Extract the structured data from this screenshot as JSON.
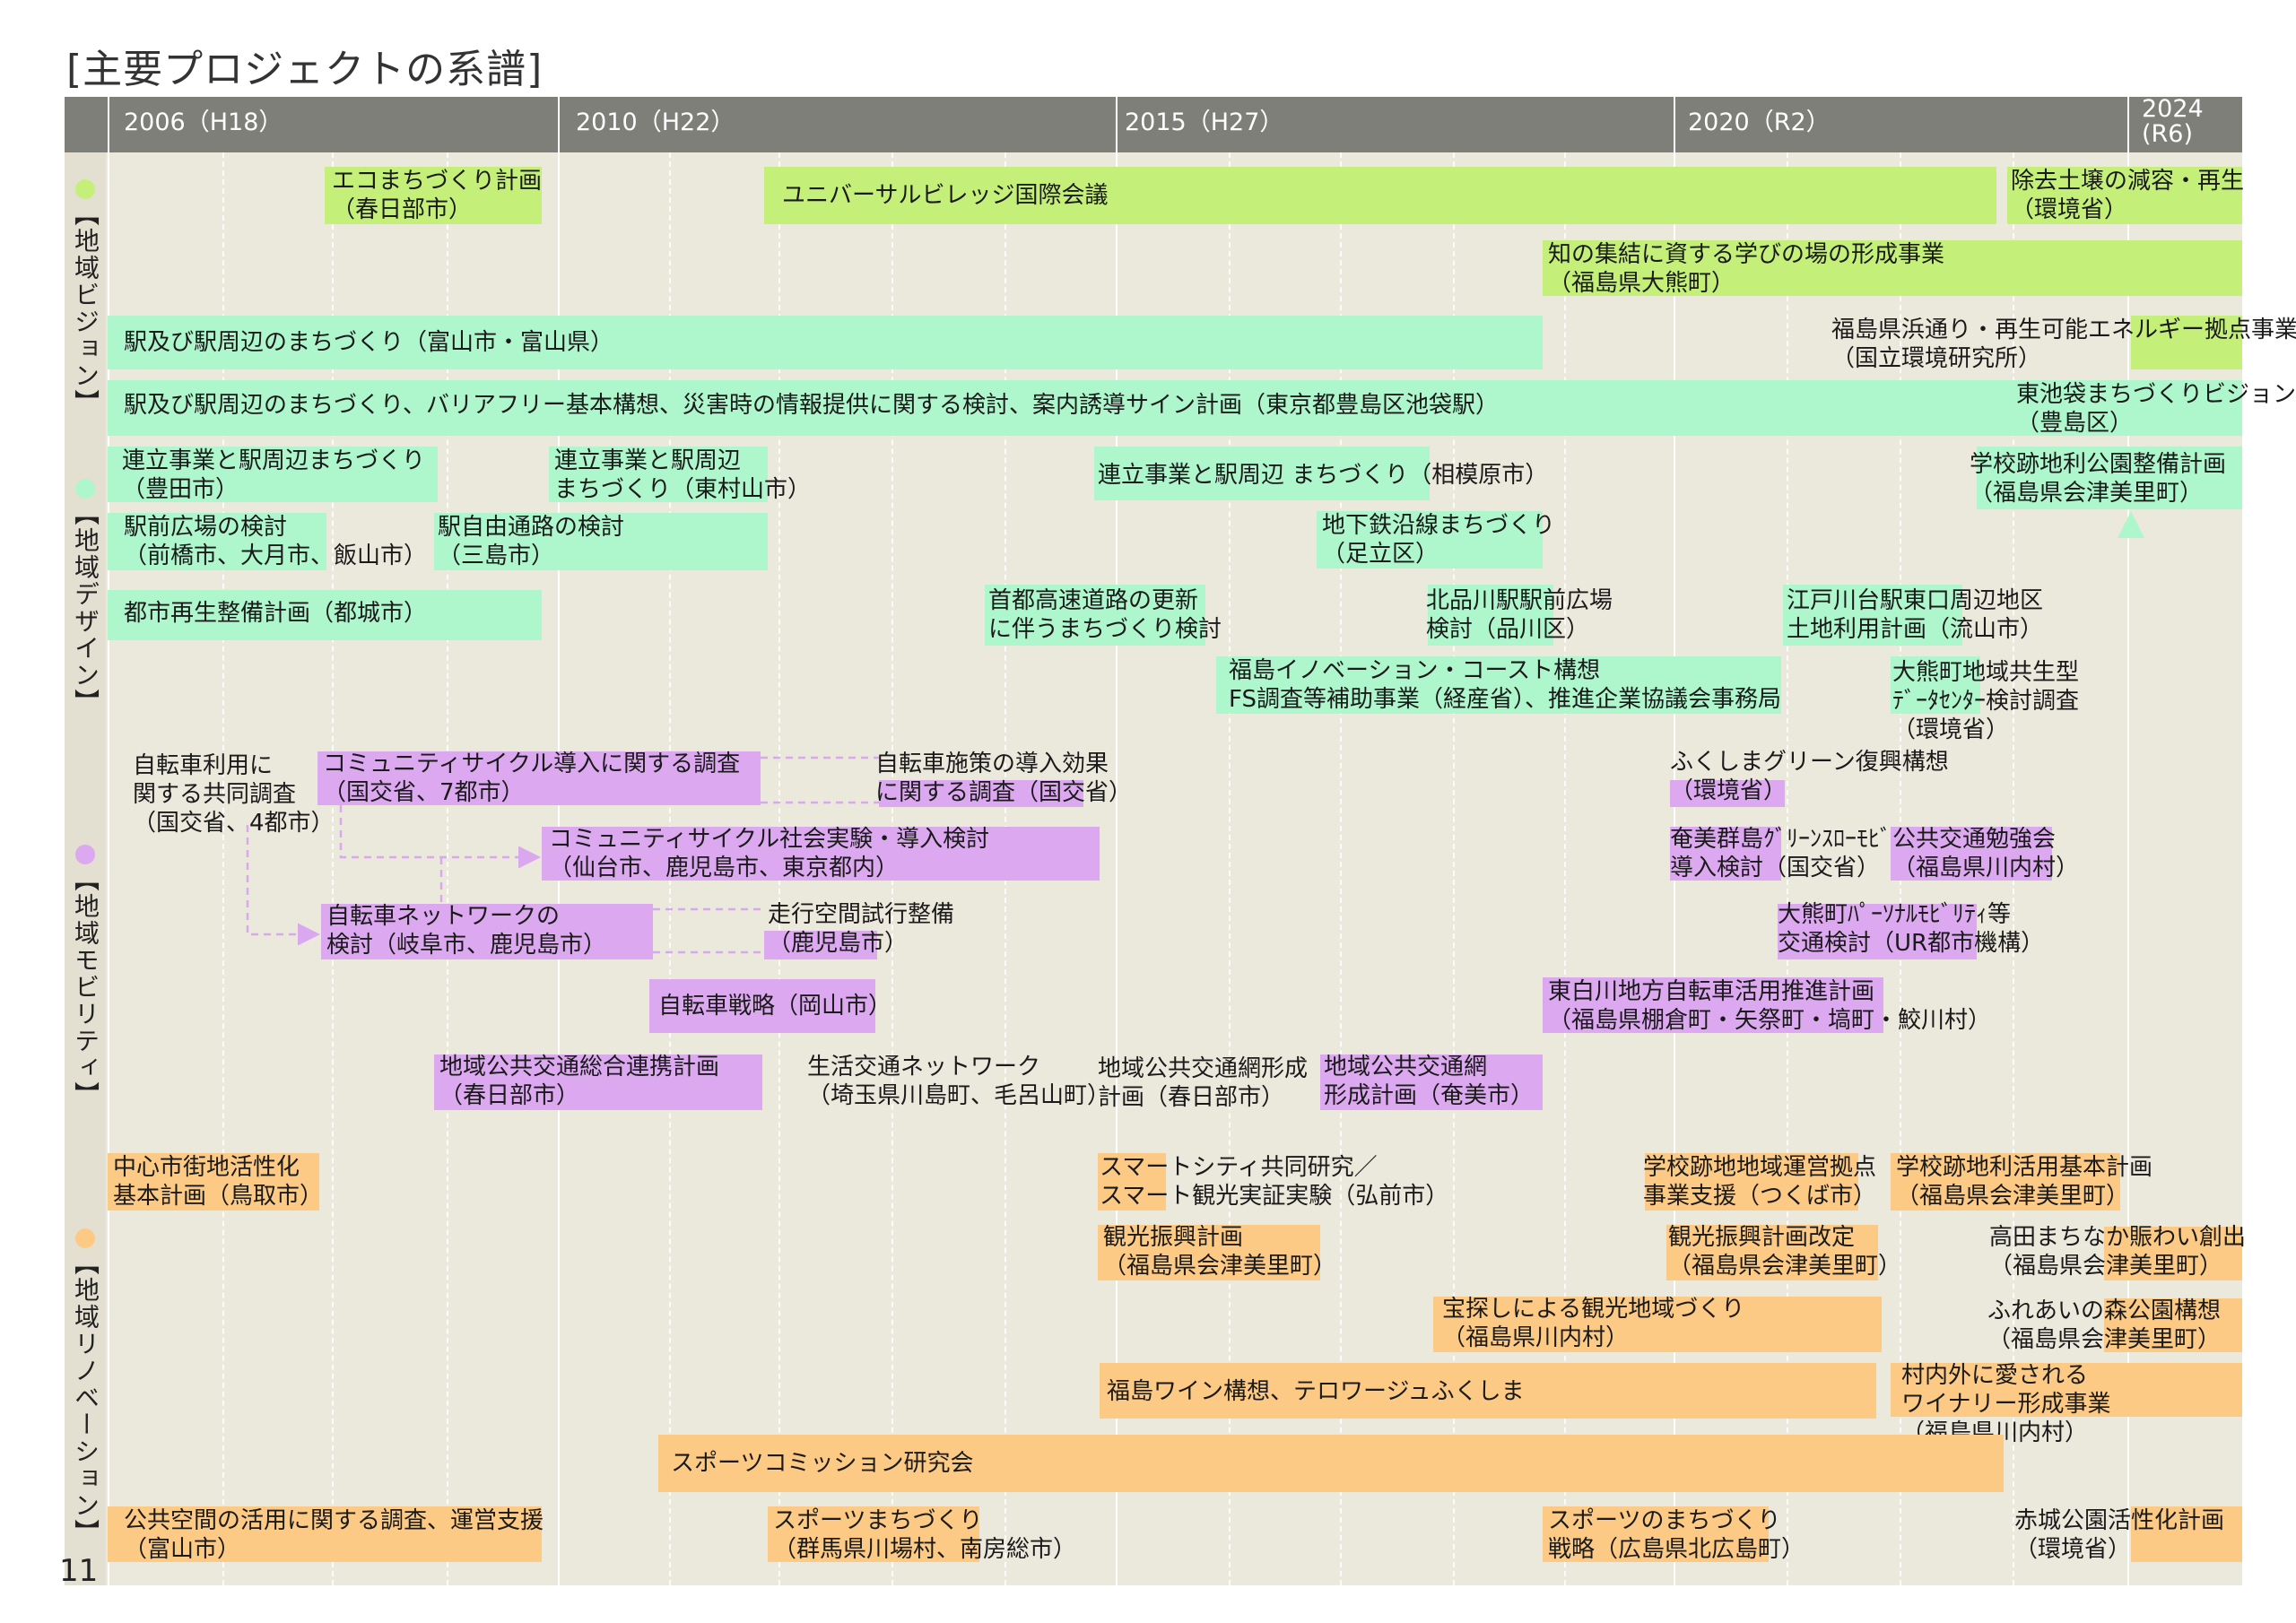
{
  "title": "[主要プロジェクトの系譜]",
  "page_number": "11",
  "colors": {
    "vision": "#c4f07a",
    "design": "#aef6cc",
    "mobility": "#dca8f0",
    "renovation": "#fcca84",
    "header": "#7f7f79",
    "background": "#ebe8dc"
  },
  "timeline": {
    "years": [
      "2006（H18）",
      "2010（H22）",
      "2015（H27）",
      "2020（R2）"
    ],
    "last_year": [
      "2024",
      "(R6)"
    ]
  },
  "sections": {
    "vision": "【地域ビジョン】",
    "design": "【地域デザイン】",
    "mobility": "【地域モビリティ】",
    "renovation": "【地域リノベーション】"
  },
  "projects": {
    "vision": [
      "エコまちづくり計画\n（春日部市）",
      "ユニバーサルビレッジ国際会議",
      "除去土壌の減容・再生\n（環境省）",
      "知の集結に資する学びの場の形成事業\n（福島県大熊町）"
    ],
    "design": [
      "駅及び駅周辺のまちづくり（富山市・富山県）",
      "福島県浜通り・再生可能エネルギー拠点事業\n（国立環境研究所）",
      "駅及び駅周辺のまちづくり、バリアフリー基本構想、災害時の情報提供に関する検討、案内誘導サイン計画（東京都豊島区池袋駅）",
      "東池袋まちづくりビジョン\n（豊島区）",
      "連立事業と駅周辺まちづくり\n（豊田市）",
      "連立事業と駅周辺\nまちづくり（東村山市）",
      "連立事業と駅周辺 まちづくり（相模原市）",
      "学校跡地利公園整備計画\n（福島県会津美里町）",
      "駅前広場の検討\n（前橋市、大月市、飯山市）",
      "駅自由通路の検討\n（三島市）",
      "地下鉄沿線まちづくり\n（足立区）",
      "都市再生整備計画（都城市）",
      "首都高速道路の更新\nに伴うまちづくり検討",
      "北品川駅駅前広場\n検討（品川区）",
      "江戸川台駅東口周辺地区\n土地利用計画（流山市）",
      "福島イノベーション・コースト構想\nFS調査等補助事業（経産省）、推進企業協議会事務局",
      "大熊町地域共生型\nﾃﾞｰﾀｾﾝﾀｰ検討調査\n（環境省）"
    ],
    "mobility": [
      "自転車利用に\n関する共同調査\n（国交省、4都市）",
      "コミュニティサイクル導入に関する調査\n（国交省、7都市）",
      "自転車施策の導入効果\nに関する調査（国交省）",
      "ふくしまグリーン復興構想\n（環境省）",
      "コミュニティサイクル社会実験・導入検討\n（仙台市、鹿児島市、東京都内）",
      "奄美群島ｸﾞﾘｰﾝｽﾛｰﾓﾋﾞﾘﾃｨ\n導入検討（国交省）",
      "公共交通勉強会\n（福島県川内村）",
      "自転車ネットワークの\n検討（岐阜市、鹿児島市）",
      "走行空間試行整備\n（鹿児島市）",
      "大熊町ﾊﾟｰｿﾅﾙﾓﾋﾞﾘﾃｨ等\n交通検討（UR都市機構）",
      "自転車戦略（岡山市）",
      "東白川地方自転車活用推進計画\n（福島県棚倉町・矢祭町・塙町・鮫川村）",
      "地域公共交通総合連携計画\n（春日部市）",
      "生活交通ネットワーク\n（埼玉県川島町、毛呂山町）",
      "地域公共交通網形成\n計画（春日部市）",
      "地域公共交通網\n形成計画（奄美市）"
    ],
    "renovation": [
      "中心市街地活性化\n基本計画（鳥取市）",
      "スマートシティ共同研究／\nスマート観光実証実験（弘前市）",
      "学校跡地地域運営拠点\n事業支援（つくば市）",
      "学校跡地利活用基本計画\n（福島県会津美里町）",
      "観光振興計画\n（福島県会津美里町）",
      "観光振興計画改定\n（福島県会津美里町）",
      "高田まちなか賑わい創出\n（福島県会津美里町）",
      "宝探しによる観光地域づくり\n（福島県川内村）",
      "ふれあいの森公園構想\n（福島県会津美里町）",
      "福島ワイン構想、テロワージュふくしま",
      "村内外に愛される\nワイナリー形成事業\n（福島県川内村）",
      "スポーツコミッション研究会",
      "公共空間の活用に関する調査、運営支援\n（富山市）",
      "スポーツまちづくり\n（群馬県川場村、南房総市）",
      "スポーツのまちづくり\n戦略（広島県北広島町）",
      "赤城公園活性化計画\n（環境省）"
    ]
  }
}
